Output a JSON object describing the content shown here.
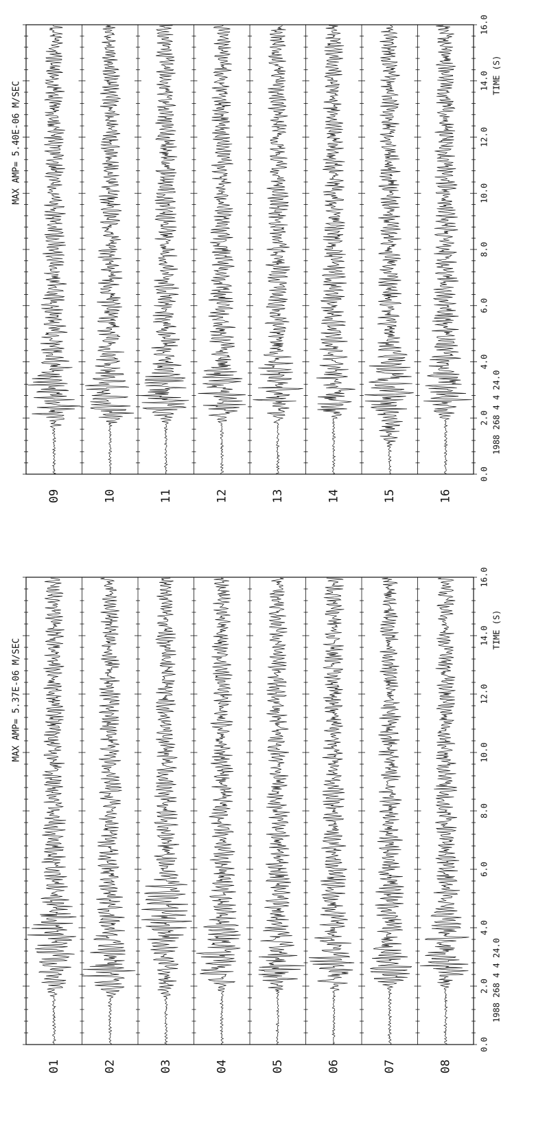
{
  "chart_data": [
    {
      "type": "line",
      "title": "MAX AMP=  5.37E-06 M/SEC",
      "xlabel": "TIME (S)",
      "date_label": "1988 268  4  4  24.0",
      "x_ticks": [
        "0.0",
        "2.0",
        "4.0",
        "6.0",
        "8.0",
        "10.0",
        "12.0",
        "14.0",
        "16.0"
      ],
      "xlim": [
        0,
        16
      ],
      "max_amplitude": "5.37E-06",
      "units": "M/SEC",
      "grid": false,
      "series": [
        {
          "name": "01",
          "onset_s": 1.6,
          "peak_s": 3.8
        },
        {
          "name": "02",
          "onset_s": 1.6,
          "peak_s": 2.4
        },
        {
          "name": "03",
          "onset_s": 1.6,
          "peak_s": 4.6
        },
        {
          "name": "04",
          "onset_s": 1.8,
          "peak_s": 3.0
        },
        {
          "name": "05",
          "onset_s": 1.8,
          "peak_s": 2.4
        },
        {
          "name": "06",
          "onset_s": 1.8,
          "peak_s": 2.6
        },
        {
          "name": "07",
          "onset_s": 1.9,
          "peak_s": 2.6
        },
        {
          "name": "08",
          "onset_s": 1.9,
          "peak_s": 3.2
        }
      ]
    },
    {
      "type": "line",
      "title": "MAX AMP=  5.40E-06 M/SEC",
      "xlabel": "TIME (S)",
      "date_label": "1988 268  4  4  24.0",
      "x_ticks": [
        "0.0",
        "2.0",
        "4.0",
        "6.0",
        "8.0",
        "10.0",
        "12.0",
        "14.0",
        "16.0"
      ],
      "xlim": [
        0,
        16
      ],
      "max_amplitude": "5.40E-06",
      "units": "M/SEC",
      "grid": false,
      "series": [
        {
          "name": "09",
          "onset_s": 1.6,
          "peak_s": 2.8
        },
        {
          "name": "10",
          "onset_s": 1.7,
          "peak_s": 2.6
        },
        {
          "name": "11",
          "onset_s": 1.8,
          "peak_s": 2.6
        },
        {
          "name": "12",
          "onset_s": 1.8,
          "peak_s": 2.8
        },
        {
          "name": "13",
          "onset_s": 1.8,
          "peak_s": 2.8
        },
        {
          "name": "14",
          "onset_s": 1.9,
          "peak_s": 2.6
        },
        {
          "name": "15",
          "onset_s": 1.0,
          "peak_s": 3.2
        },
        {
          "name": "16",
          "onset_s": 1.9,
          "peak_s": 2.8
        }
      ]
    }
  ]
}
